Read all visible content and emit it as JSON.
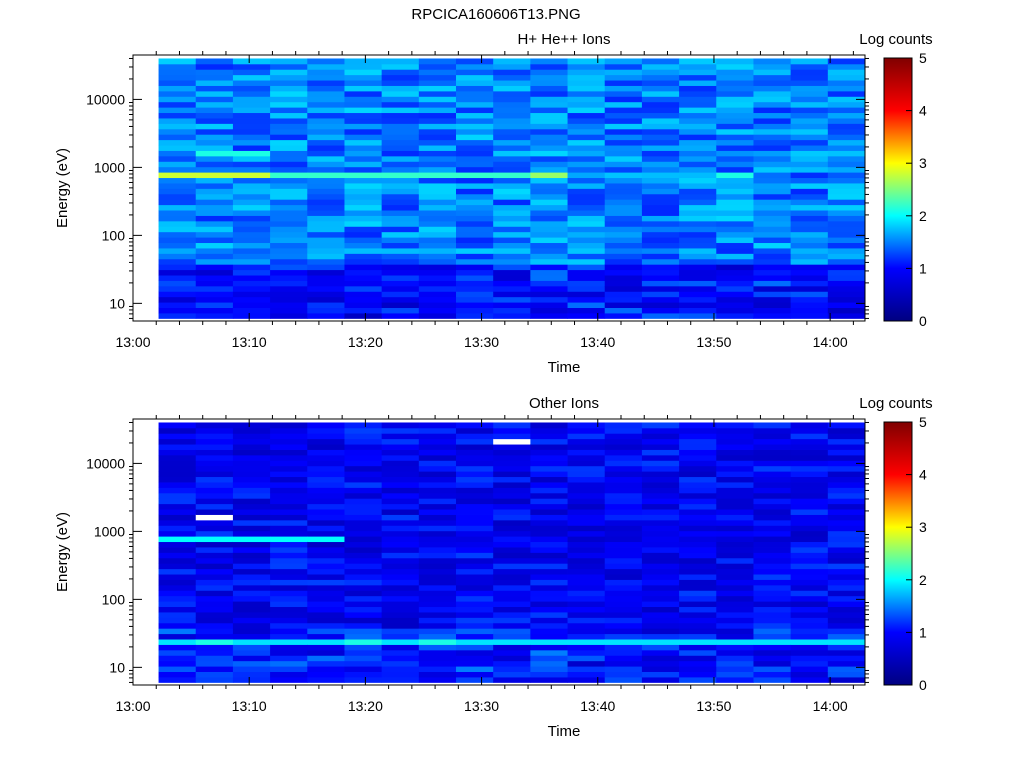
{
  "figure_title": "RPCICA160606T13.PNG",
  "colormap": [
    "#000080",
    "#0000ff",
    "#00ffff",
    "#ffff00",
    "#ff0000",
    "#800000"
  ],
  "chart_data": [
    {
      "type": "heatmap",
      "title": "H+ He++ Ions",
      "xlabel": "Time",
      "ylabel": "Energy (eV)",
      "colorbar_label": "Log counts",
      "x_tick_labels": [
        "13:00",
        "13:10",
        "13:20",
        "13:30",
        "13:40",
        "13:50",
        "14:00"
      ],
      "y_tick_labels": [
        "10",
        "100",
        "1000",
        "10000"
      ],
      "colorbar_ticks": [
        "0",
        "1",
        "2",
        "3",
        "4",
        "5"
      ],
      "xlim": [
        "13:00",
        "14:03"
      ],
      "ylim": [
        5.5,
        45000
      ],
      "yscale": "log",
      "clim": [
        0,
        5
      ],
      "time_start_minutes": 2.2,
      "bin_minutes": 3.2,
      "n_time_bins": 19,
      "energy_rows_min": 6,
      "energy_rows_max": 40000,
      "n_energy_rows": 48,
      "background_level": 1.5,
      "features": [
        {
          "energy_eV": 760,
          "level": 2.8,
          "time_bins": [
            0,
            1,
            2
          ],
          "note": "bright line"
        },
        {
          "energy_eV": 760,
          "level": 2.2,
          "time_bins": [
            3,
            4,
            5,
            6,
            7,
            8,
            9
          ]
        },
        {
          "energy_eV": 760,
          "level": 2.6,
          "time_bins": [
            10
          ]
        },
        {
          "energy_eV": 760,
          "level": 2.1,
          "time_bins": [
            15
          ]
        },
        {
          "energy_eV": 1500,
          "level": 2.1,
          "time_bins": [
            1,
            2
          ]
        }
      ]
    },
    {
      "type": "heatmap",
      "title": "Other Ions",
      "xlabel": "Time",
      "ylabel": "Energy (eV)",
      "colorbar_label": "Log counts",
      "x_tick_labels": [
        "13:00",
        "13:10",
        "13:20",
        "13:30",
        "13:40",
        "13:50",
        "14:00"
      ],
      "y_tick_labels": [
        "10",
        "100",
        "1000",
        "10000"
      ],
      "colorbar_ticks": [
        "0",
        "1",
        "2",
        "3",
        "4",
        "5"
      ],
      "xlim": [
        "13:00",
        "14:03"
      ],
      "ylim": [
        5.5,
        45000
      ],
      "yscale": "log",
      "clim": [
        0,
        5
      ],
      "time_start_minutes": 2.2,
      "bin_minutes": 3.2,
      "n_time_bins": 19,
      "energy_rows_min": 6,
      "energy_rows_max": 40000,
      "n_energy_rows": 48,
      "background_level": 0.9,
      "features": [
        {
          "energy_eV": 25,
          "level": 1.9,
          "time_bins": [
            0,
            1,
            2,
            3,
            4,
            5,
            6,
            7,
            8,
            9,
            10,
            11,
            12,
            13,
            14,
            15,
            16,
            17,
            18
          ]
        },
        {
          "energy_eV": 22,
          "level": 2.1,
          "time_bins": [
            1,
            5,
            7
          ]
        },
        {
          "energy_eV": 800,
          "level": 2.0,
          "time_bins": [
            0,
            1,
            2,
            3,
            4
          ]
        },
        {
          "energy_eV": 1700,
          "level": -1,
          "time_bins": [
            1
          ],
          "note": "no data (white)"
        },
        {
          "energy_eV": 21000,
          "level": -1,
          "time_bins": [
            9
          ],
          "note": "no data (white)"
        }
      ]
    }
  ]
}
